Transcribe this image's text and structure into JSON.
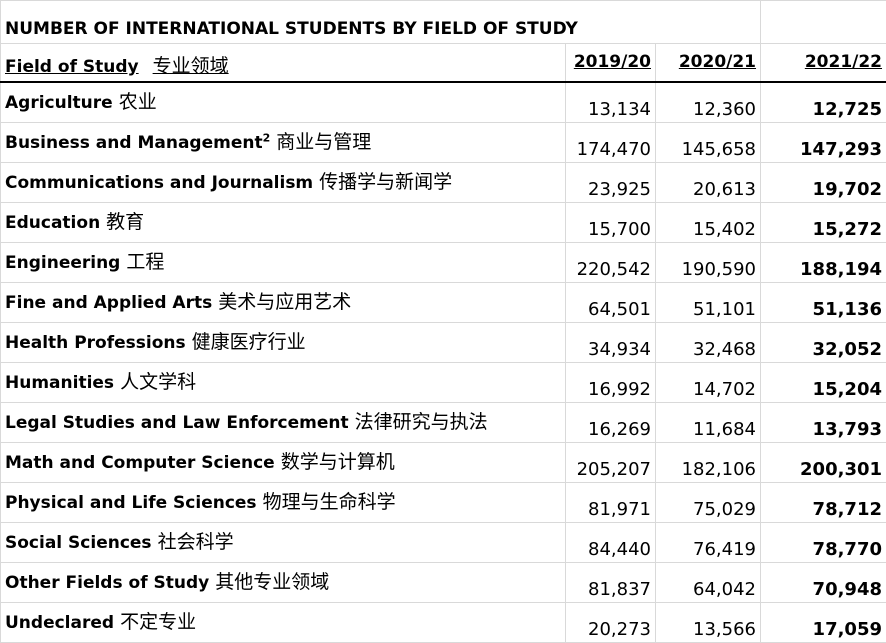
{
  "table": {
    "title": "NUMBER OF INTERNATIONAL STUDENTS BY FIELD OF STUDY",
    "header": {
      "field": "Field of Study",
      "field_cn": "专业领域",
      "years": [
        "2019/20",
        "2020/21",
        "2021/22"
      ]
    },
    "rows": [
      {
        "en": "Agriculture",
        "sup": "",
        "cn": "农业",
        "v": [
          "13,134",
          "12,360",
          "12,725"
        ]
      },
      {
        "en": "Business and Management",
        "sup": "2",
        "cn": "商业与管理",
        "v": [
          "174,470",
          "145,658",
          "147,293"
        ]
      },
      {
        "en": "Communications and Journalism",
        "sup": "",
        "cn": "传播学与新闻学",
        "v": [
          "23,925",
          "20,613",
          "19,702"
        ]
      },
      {
        "en": "Education",
        "sup": "",
        "cn": "教育",
        "v": [
          "15,700",
          "15,402",
          "15,272"
        ]
      },
      {
        "en": "Engineering",
        "sup": "",
        "cn": "工程",
        "v": [
          "220,542",
          "190,590",
          "188,194"
        ]
      },
      {
        "en": "Fine and Applied Arts",
        "sup": "",
        "cn": "美术与应用艺术",
        "v": [
          "64,501",
          "51,101",
          "51,136"
        ]
      },
      {
        "en": "Health Professions",
        "sup": "",
        "cn": "健康医疗行业",
        "v": [
          "34,934",
          "32,468",
          "32,052"
        ]
      },
      {
        "en": "Humanities",
        "sup": "",
        "cn": "人文学科",
        "v": [
          "16,992",
          "14,702",
          "15,204"
        ]
      },
      {
        "en": "Legal Studies and Law Enforcement",
        "sup": "",
        "cn": "法律研究与执法",
        "v": [
          "16,269",
          "11,684",
          "13,793"
        ]
      },
      {
        "en": "Math and Computer Science",
        "sup": "",
        "cn": "数学与计算机",
        "v": [
          "205,207",
          "182,106",
          "200,301"
        ]
      },
      {
        "en": "Physical and Life Sciences",
        "sup": "",
        "cn": "物理与生命科学",
        "v": [
          "81,971",
          "75,029",
          "78,712"
        ]
      },
      {
        "en": "Social Sciences",
        "sup": "",
        "cn": "社会科学",
        "v": [
          "84,440",
          "76,419",
          "78,770"
        ]
      },
      {
        "en": "Other Fields of Study",
        "sup": "",
        "cn": "其他专业领域",
        "v": [
          "81,837",
          "64,042",
          "70,948"
        ]
      },
      {
        "en": "Undeclared",
        "sup": "",
        "cn": "不定专业",
        "v": [
          "20,273",
          "13,566",
          "17,059"
        ]
      }
    ]
  }
}
